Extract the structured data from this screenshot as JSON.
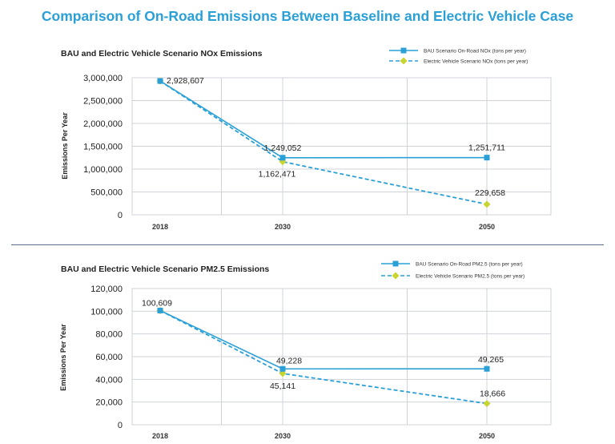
{
  "page": {
    "title": "Comparison of On-Road Emissions Between Baseline and Electric Vehicle Case"
  },
  "chart_data": [
    {
      "type": "line",
      "title": "BAU and Electric Vehicle Scenario NOx Emissions",
      "xlabel": "",
      "ylabel": "Emissions Per Year",
      "categories": [
        "2018",
        "2030",
        "2050"
      ],
      "ylim": [
        0,
        3000000
      ],
      "yticks": [
        0,
        500000,
        1000000,
        1500000,
        2000000,
        2500000,
        3000000
      ],
      "ytick_labels": [
        "0",
        "500,000",
        "1,000,000",
        "1,500,000",
        "2,000,000",
        "2,500,000",
        "3,000,000"
      ],
      "grid": true,
      "legend_position": "top-right",
      "series": [
        {
          "name": "BAU Scenario On-Road NOx (tons per year)",
          "values": [
            2928607,
            1249052,
            1251711
          ],
          "labels": [
            "2,928,607",
            "1,249,052",
            "1,251,711"
          ],
          "color": "#2aa0d6",
          "style": "solid",
          "marker": "square"
        },
        {
          "name": "Electric Vehicle Scenario NOx (tons per year)",
          "values": [
            2928607,
            1162471,
            229658
          ],
          "labels": [
            "",
            "1,162,471",
            "229,658"
          ],
          "color": "#2aa0d6",
          "marker_color": "#c8d531",
          "style": "dashed",
          "marker": "diamond"
        }
      ]
    },
    {
      "type": "line",
      "title": "BAU and Electric Vehicle Scenario PM2.5 Emissions",
      "xlabel": "",
      "ylabel": "Emissions Per Year",
      "categories": [
        "2018",
        "2030",
        "2050"
      ],
      "ylim": [
        0,
        120000
      ],
      "yticks": [
        0,
        20000,
        40000,
        60000,
        80000,
        100000,
        120000
      ],
      "ytick_labels": [
        "0",
        "20,000",
        "40,000",
        "60,000",
        "80,000",
        "100,000",
        "120,000"
      ],
      "grid": true,
      "legend_position": "top-right",
      "series": [
        {
          "name": "BAU Scenario On-Road PM2.5 (tons per year)",
          "values": [
            100609,
            49228,
            49265
          ],
          "labels": [
            "100,609",
            "49,228",
            "49,265"
          ],
          "color": "#2aa0d6",
          "style": "solid",
          "marker": "square"
        },
        {
          "name": "Electric Vehicle Scenario PM2.5 (tons per year)",
          "values": [
            100609,
            45141,
            18666
          ],
          "labels": [
            "",
            "45,141",
            "18,666"
          ],
          "color": "#2aa0d6",
          "marker_color": "#c8d531",
          "style": "dashed",
          "marker": "diamond"
        }
      ]
    }
  ]
}
